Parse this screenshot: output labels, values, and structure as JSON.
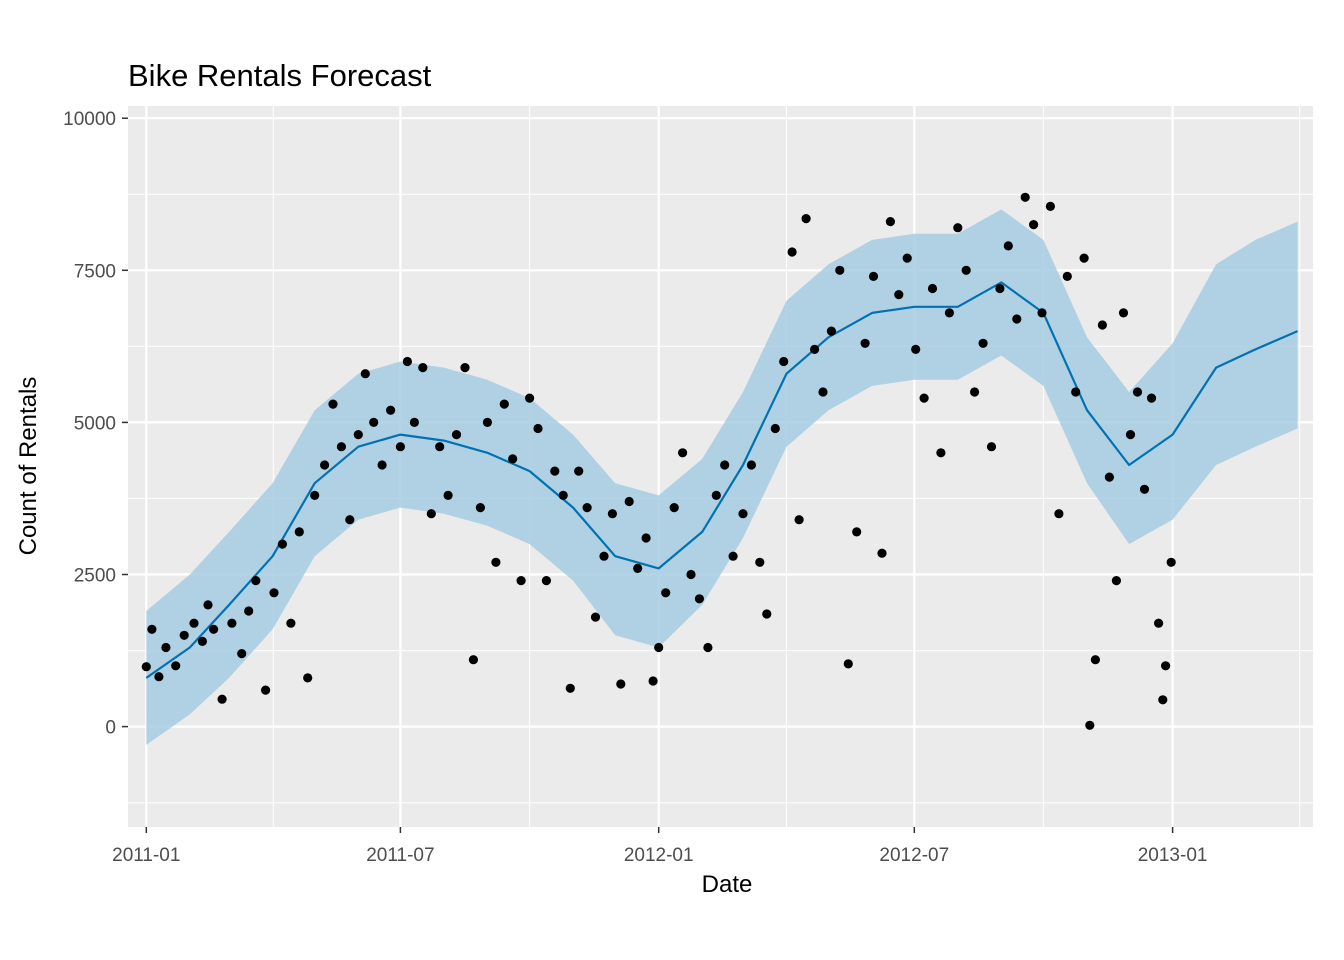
{
  "chart_data": {
    "type": "line",
    "title": "Bike Rentals Forecast",
    "xlabel": "Date",
    "ylabel": "Count of Rentals",
    "x_ticks": [
      "2011-01",
      "2011-07",
      "2012-01",
      "2012-07",
      "2013-01"
    ],
    "y_ticks": [
      "0",
      "2500",
      "5000",
      "7500",
      "10000"
    ],
    "xlim": [
      "2010-12-19",
      "2013-04-11"
    ],
    "ylim": [
      -1650,
      10200
    ],
    "grid": true,
    "legend": "none",
    "colors": {
      "panel": "#ebebeb",
      "grid": "#ffffff",
      "forecast_line": "#0072b2",
      "uncertainty_band": "#a6cde3",
      "actual_points": "#000000"
    },
    "series": [
      {
        "kind": "forecast",
        "style": "line",
        "points": [
          [
            "2011-01-01",
            800
          ],
          [
            "2011-02-01",
            1300
          ],
          [
            "2011-03-01",
            2000
          ],
          [
            "2011-04-01",
            2800
          ],
          [
            "2011-05-01",
            4000
          ],
          [
            "2011-06-01",
            4600
          ],
          [
            "2011-07-01",
            4800
          ],
          [
            "2011-08-01",
            4700
          ],
          [
            "2011-09-01",
            4500
          ],
          [
            "2011-10-01",
            4200
          ],
          [
            "2011-11-01",
            3600
          ],
          [
            "2011-12-01",
            2800
          ],
          [
            "2012-01-01",
            2600
          ],
          [
            "2012-02-01",
            3200
          ],
          [
            "2012-03-01",
            4300
          ],
          [
            "2012-04-01",
            5800
          ],
          [
            "2012-05-01",
            6400
          ],
          [
            "2012-06-01",
            6800
          ],
          [
            "2012-07-01",
            6900
          ],
          [
            "2012-08-01",
            6900
          ],
          [
            "2012-09-01",
            7300
          ],
          [
            "2012-10-01",
            6800
          ],
          [
            "2012-11-01",
            5200
          ],
          [
            "2012-12-01",
            4300
          ],
          [
            "2013-01-01",
            4800
          ],
          [
            "2013-02-01",
            5900
          ],
          [
            "2013-03-01",
            6200
          ],
          [
            "2013-03-31",
            6500
          ]
        ]
      },
      {
        "kind": "uncertainty",
        "style": "band",
        "points": [
          [
            "2011-01-01",
            -300,
            1900
          ],
          [
            "2011-02-01",
            200,
            2500
          ],
          [
            "2011-03-01",
            800,
            3200
          ],
          [
            "2011-04-01",
            1600,
            4000
          ],
          [
            "2011-05-01",
            2800,
            5200
          ],
          [
            "2011-06-01",
            3400,
            5800
          ],
          [
            "2011-07-01",
            3600,
            6000
          ],
          [
            "2011-08-01",
            3500,
            5900
          ],
          [
            "2011-09-01",
            3300,
            5700
          ],
          [
            "2011-10-01",
            3000,
            5400
          ],
          [
            "2011-11-01",
            2400,
            4800
          ],
          [
            "2011-12-01",
            1500,
            4000
          ],
          [
            "2012-01-01",
            1300,
            3800
          ],
          [
            "2012-02-01",
            2000,
            4400
          ],
          [
            "2012-03-01",
            3100,
            5500
          ],
          [
            "2012-04-01",
            4600,
            7000
          ],
          [
            "2012-05-01",
            5200,
            7600
          ],
          [
            "2012-06-01",
            5600,
            8000
          ],
          [
            "2012-07-01",
            5700,
            8100
          ],
          [
            "2012-08-01",
            5700,
            8100
          ],
          [
            "2012-09-01",
            6100,
            8500
          ],
          [
            "2012-10-01",
            5600,
            8000
          ],
          [
            "2012-11-01",
            4000,
            6400
          ],
          [
            "2012-12-01",
            3000,
            5500
          ],
          [
            "2013-01-01",
            3400,
            6300
          ],
          [
            "2013-02-01",
            4300,
            7600
          ],
          [
            "2013-03-01",
            4600,
            8000
          ],
          [
            "2013-03-31",
            4900,
            8300
          ]
        ]
      },
      {
        "kind": "actual",
        "style": "points",
        "points": [
          [
            "2011-01-01",
            985
          ],
          [
            "2011-01-05",
            1600
          ],
          [
            "2011-01-10",
            820
          ],
          [
            "2011-01-15",
            1300
          ],
          [
            "2011-01-22",
            1000
          ],
          [
            "2011-01-28",
            1500
          ],
          [
            "2011-02-04",
            1700
          ],
          [
            "2011-02-10",
            1400
          ],
          [
            "2011-02-14",
            2000
          ],
          [
            "2011-02-18",
            1600
          ],
          [
            "2011-02-24",
            450
          ],
          [
            "2011-03-03",
            1700
          ],
          [
            "2011-03-10",
            1200
          ],
          [
            "2011-03-15",
            1900
          ],
          [
            "2011-03-20",
            2400
          ],
          [
            "2011-03-27",
            600
          ],
          [
            "2011-04-02",
            2200
          ],
          [
            "2011-04-08",
            3000
          ],
          [
            "2011-04-14",
            1700
          ],
          [
            "2011-04-20",
            3200
          ],
          [
            "2011-04-26",
            800
          ],
          [
            "2011-05-01",
            3800
          ],
          [
            "2011-05-08",
            4300
          ],
          [
            "2011-05-14",
            5300
          ],
          [
            "2011-05-20",
            4600
          ],
          [
            "2011-05-26",
            3400
          ],
          [
            "2011-06-01",
            4800
          ],
          [
            "2011-06-06",
            5800
          ],
          [
            "2011-06-12",
            5000
          ],
          [
            "2011-06-18",
            4300
          ],
          [
            "2011-06-24",
            5200
          ],
          [
            "2011-07-01",
            4600
          ],
          [
            "2011-07-06",
            6000
          ],
          [
            "2011-07-11",
            5000
          ],
          [
            "2011-07-17",
            5900
          ],
          [
            "2011-07-23",
            3500
          ],
          [
            "2011-07-29",
            4600
          ],
          [
            "2011-08-04",
            3800
          ],
          [
            "2011-08-10",
            4800
          ],
          [
            "2011-08-16",
            5900
          ],
          [
            "2011-08-22",
            1100
          ],
          [
            "2011-08-27",
            3600
          ],
          [
            "2011-09-01",
            5000
          ],
          [
            "2011-09-07",
            2700
          ],
          [
            "2011-09-13",
            5300
          ],
          [
            "2011-09-19",
            4400
          ],
          [
            "2011-09-25",
            2400
          ],
          [
            "2011-10-01",
            5400
          ],
          [
            "2011-10-07",
            4900
          ],
          [
            "2011-10-13",
            2400
          ],
          [
            "2011-10-19",
            4200
          ],
          [
            "2011-10-25",
            3800
          ],
          [
            "2011-10-30",
            630
          ],
          [
            "2011-11-05",
            4200
          ],
          [
            "2011-11-11",
            3600
          ],
          [
            "2011-11-17",
            1800
          ],
          [
            "2011-11-23",
            2800
          ],
          [
            "2011-11-29",
            3500
          ],
          [
            "2011-12-05",
            700
          ],
          [
            "2011-12-11",
            3700
          ],
          [
            "2011-12-17",
            2600
          ],
          [
            "2011-12-23",
            3100
          ],
          [
            "2011-12-28",
            750
          ],
          [
            "2012-01-01",
            1300
          ],
          [
            "2012-01-06",
            2200
          ],
          [
            "2012-01-12",
            3600
          ],
          [
            "2012-01-18",
            4500
          ],
          [
            "2012-01-24",
            2500
          ],
          [
            "2012-01-30",
            2100
          ],
          [
            "2012-02-05",
            1300
          ],
          [
            "2012-02-11",
            3800
          ],
          [
            "2012-02-17",
            4300
          ],
          [
            "2012-02-23",
            2800
          ],
          [
            "2012-03-01",
            3500
          ],
          [
            "2012-03-07",
            4300
          ],
          [
            "2012-03-13",
            2700
          ],
          [
            "2012-03-18",
            1850
          ],
          [
            "2012-03-24",
            4900
          ],
          [
            "2012-03-30",
            6000
          ],
          [
            "2012-04-05",
            7800
          ],
          [
            "2012-04-10",
            3400
          ],
          [
            "2012-04-15",
            8350
          ],
          [
            "2012-04-21",
            6200
          ],
          [
            "2012-04-27",
            5500
          ],
          [
            "2012-05-03",
            6500
          ],
          [
            "2012-05-09",
            7500
          ],
          [
            "2012-05-15",
            1030
          ],
          [
            "2012-05-21",
            3200
          ],
          [
            "2012-05-27",
            6300
          ],
          [
            "2012-06-02",
            7400
          ],
          [
            "2012-06-08",
            2850
          ],
          [
            "2012-06-14",
            8300
          ],
          [
            "2012-06-20",
            7100
          ],
          [
            "2012-06-26",
            7700
          ],
          [
            "2012-07-02",
            6200
          ],
          [
            "2012-07-08",
            5400
          ],
          [
            "2012-07-14",
            7200
          ],
          [
            "2012-07-20",
            4500
          ],
          [
            "2012-07-26",
            6800
          ],
          [
            "2012-08-01",
            8200
          ],
          [
            "2012-08-07",
            7500
          ],
          [
            "2012-08-13",
            5500
          ],
          [
            "2012-08-19",
            6300
          ],
          [
            "2012-08-25",
            4600
          ],
          [
            "2012-08-31",
            7200
          ],
          [
            "2012-09-06",
            7900
          ],
          [
            "2012-09-12",
            6700
          ],
          [
            "2012-09-18",
            8700
          ],
          [
            "2012-09-24",
            8250
          ],
          [
            "2012-09-30",
            6800
          ],
          [
            "2012-10-06",
            8550
          ],
          [
            "2012-10-12",
            3500
          ],
          [
            "2012-10-18",
            7400
          ],
          [
            "2012-10-24",
            5500
          ],
          [
            "2012-10-30",
            7700
          ],
          [
            "2012-11-03",
            22
          ],
          [
            "2012-11-07",
            1100
          ],
          [
            "2012-11-12",
            6600
          ],
          [
            "2012-11-17",
            4100
          ],
          [
            "2012-11-22",
            2400
          ],
          [
            "2012-11-27",
            6800
          ],
          [
            "2012-12-02",
            4800
          ],
          [
            "2012-12-07",
            5500
          ],
          [
            "2012-12-12",
            3900
          ],
          [
            "2012-12-17",
            5400
          ],
          [
            "2012-12-22",
            1700
          ],
          [
            "2012-12-25",
            440
          ],
          [
            "2012-12-27",
            1000
          ],
          [
            "2012-12-31",
            2700
          ]
        ]
      }
    ]
  }
}
